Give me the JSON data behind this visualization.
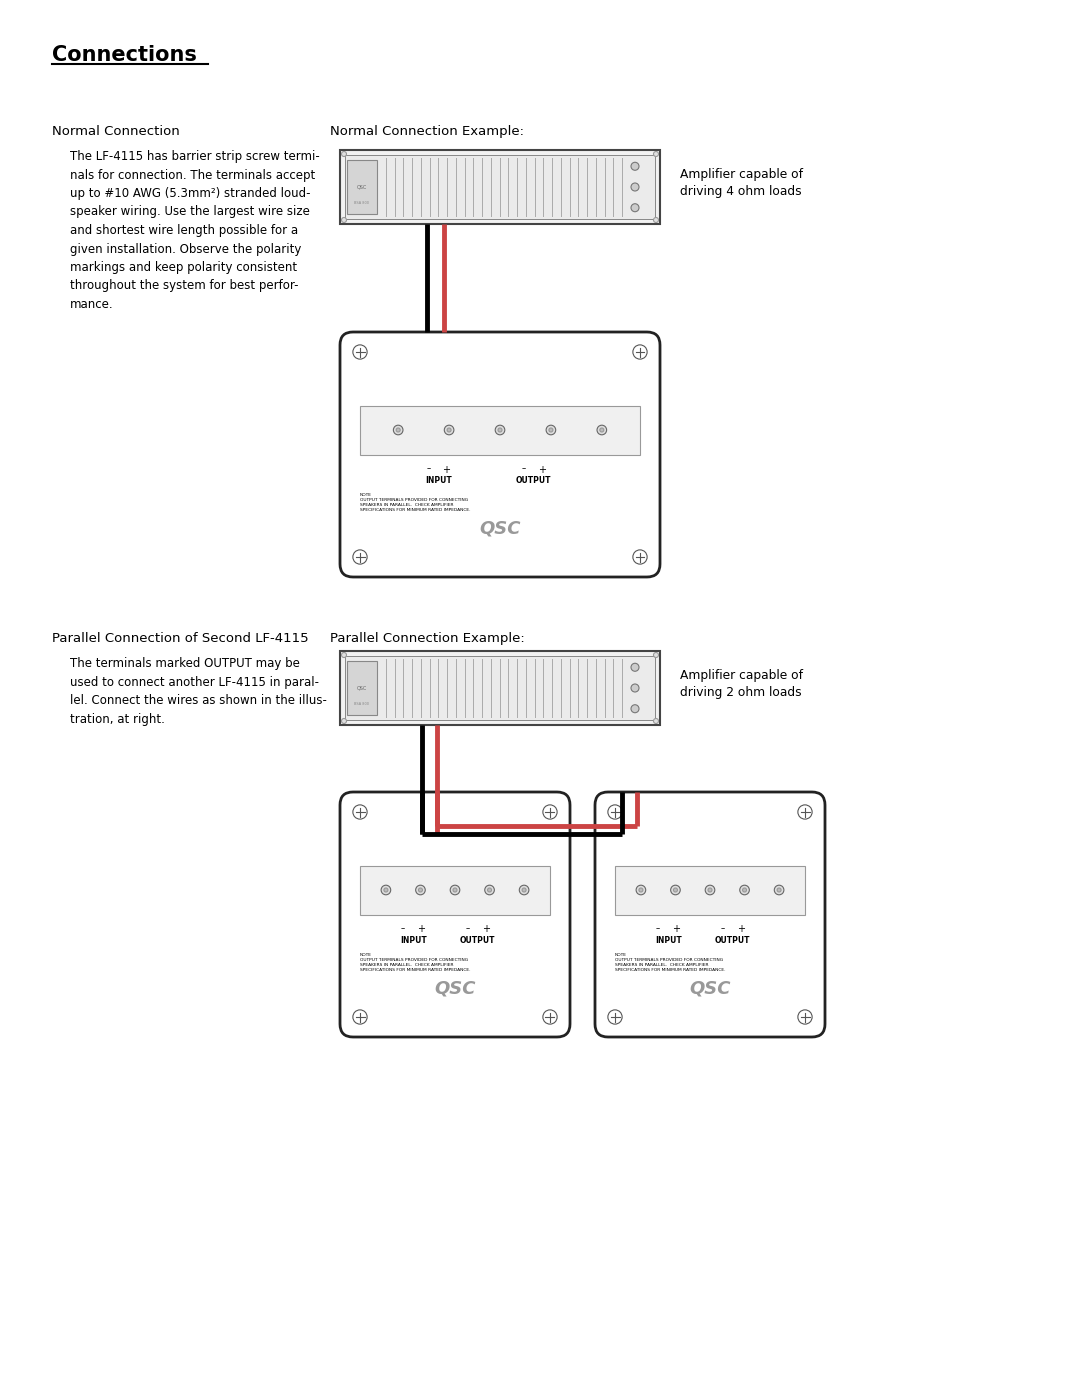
{
  "title": "Connections",
  "bg_color": "#ffffff",
  "normal_connection_title": "Normal Connection",
  "normal_example_title": "Normal Connection Example:",
  "normal_amp_label": "Amplifier capable of\ndriving 4 ohm loads",
  "parallel_connection_title": "Parallel Connection of Second LF-4115",
  "parallel_example_title": "Parallel Connection Example:",
  "parallel_amp_label": "Amplifier capable of\ndriving 2 ohm loads",
  "wire_red": "#cc4444",
  "wire_black": "#000000",
  "note_text": "NOTE\nOUTPUT TERMINALS PROVIDED FOR CONNECTING\nSPEAKERS IN PARALLEL.  CHECK AMPLIFIER\nSPECIFICATIONS FOR MINIMUM RATED IMPEDANCE.",
  "qsc_text": "QSC"
}
